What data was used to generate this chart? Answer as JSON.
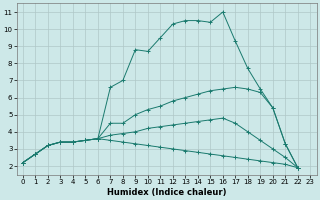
{
  "xlabel": "Humidex (Indice chaleur)",
  "background_color": "#cde8e8",
  "grid_color": "#b0c8c8",
  "line_color": "#1a7a6e",
  "xlim": [
    -0.5,
    23.5
  ],
  "ylim": [
    1.5,
    11.5
  ],
  "xticks": [
    0,
    1,
    2,
    3,
    4,
    5,
    6,
    7,
    8,
    9,
    10,
    11,
    12,
    13,
    14,
    15,
    16,
    17,
    18,
    19,
    20,
    21,
    22,
    23
  ],
  "yticks": [
    2,
    3,
    4,
    5,
    6,
    7,
    8,
    9,
    10,
    11
  ],
  "lines": [
    [
      2.2,
      2.7,
      3.2,
      3.4,
      3.4,
      3.5,
      3.6,
      6.6,
      7.0,
      8.8,
      8.7,
      9.5,
      10.3,
      10.5,
      10.5,
      10.4,
      11.0,
      9.3,
      7.7,
      6.5,
      5.4,
      3.3,
      1.9,
      null
    ],
    [
      2.2,
      2.7,
      3.2,
      3.4,
      3.4,
      3.5,
      3.6,
      4.5,
      4.5,
      5.0,
      5.3,
      5.5,
      5.8,
      6.0,
      6.2,
      6.4,
      6.5,
      6.6,
      6.5,
      6.3,
      5.4,
      3.3,
      1.9,
      null
    ],
    [
      2.2,
      2.7,
      3.2,
      3.4,
      3.4,
      3.5,
      3.6,
      3.8,
      3.9,
      4.0,
      4.2,
      4.3,
      4.4,
      4.5,
      4.6,
      4.7,
      4.8,
      4.5,
      4.0,
      3.5,
      3.0,
      2.5,
      1.9,
      null
    ],
    [
      2.2,
      2.7,
      3.2,
      3.4,
      3.4,
      3.5,
      3.6,
      3.5,
      3.4,
      3.3,
      3.2,
      3.1,
      3.0,
      2.9,
      2.8,
      2.7,
      2.6,
      2.5,
      2.4,
      2.3,
      2.2,
      2.1,
      1.9,
      null
    ]
  ]
}
